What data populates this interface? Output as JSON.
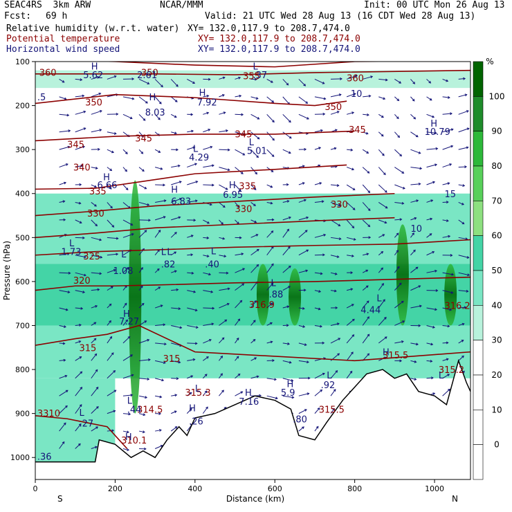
{
  "header": {
    "model": "SEAC4RS  3km ARW",
    "org": "NCAR/MMM",
    "init": "Init: 00 UTC Mon 26 Aug 13",
    "fcst_label": "Fcst:",
    "fcst_value": "69 h",
    "valid": "Valid: 21 UTC Wed 28 Aug 13 (16 CDT Wed 28 Aug 13)",
    "fields": [
      {
        "name": "Relative humidity (w.r.t. water)",
        "xy": "XY= 132.0,117.9 to 208.7,474.0",
        "color": "#000000"
      },
      {
        "name": "Potential temperature",
        "xy": "XY= 132.0,117.9 to 208.7,474.0",
        "color": "#8b0000"
      },
      {
        "name": "Horizontal wind speed",
        "xy": "XY= 132.0,117.9 to 208.7,474.0",
        "color": "#141478"
      }
    ]
  },
  "chart_data": {
    "type": "heatmap",
    "xlabel": "Distance (km)",
    "ylabel": "Pressure (hPa)",
    "x_ticks": [
      "0",
      "200",
      "400",
      "600",
      "800",
      "1000"
    ],
    "x_tick_values": [
      0,
      200,
      400,
      600,
      800,
      1000
    ],
    "xlim": [
      0,
      1090
    ],
    "y_ticks": [
      "100",
      "200",
      "300",
      "400",
      "500",
      "600",
      "700",
      "800",
      "900",
      "1000"
    ],
    "y_tick_values": [
      100,
      200,
      300,
      400,
      500,
      600,
      700,
      800,
      900,
      1000
    ],
    "ylim": [
      1050,
      100
    ],
    "x_end_labels": {
      "left": "S",
      "right": "N"
    },
    "colorbar": {
      "unit": "%",
      "ticks": [
        "100",
        "90",
        "80",
        "70",
        "60",
        "50",
        "40",
        "30",
        "20",
        "10",
        "0"
      ],
      "levels": [
        {
          "min": 100,
          "color": "#006400"
        },
        {
          "min": 90,
          "color": "#1e8c2a"
        },
        {
          "min": 80,
          "color": "#2db83a"
        },
        {
          "min": 70,
          "color": "#58d05a"
        },
        {
          "min": 60,
          "color": "#8de080"
        },
        {
          "min": 50,
          "color": "#44d4a6"
        },
        {
          "min": 40,
          "color": "#7ae6c4"
        },
        {
          "min": 30,
          "color": "#b8f2dc"
        },
        {
          "min": 20,
          "color": "#ffffff"
        },
        {
          "min": 10,
          "color": "#ffffff"
        },
        {
          "min": 0,
          "color": "#ffffff"
        }
      ]
    },
    "colors": {
      "theta": "#8b0000",
      "wind": "#141478",
      "terrain": "#000000"
    },
    "theta_contours": [
      {
        "value": "360",
        "points": [
          [
            0,
            95
          ],
          [
            200,
            100
          ],
          [
            400,
            108
          ],
          [
            600,
            112
          ],
          [
            800,
            100
          ],
          [
            1090,
            98
          ]
        ]
      },
      {
        "value": "355",
        "points": [
          [
            0,
            128
          ],
          [
            300,
            128
          ],
          [
            500,
            130
          ],
          [
            700,
            125
          ],
          [
            1090,
            120
          ]
        ]
      },
      {
        "value": "350",
        "points": [
          [
            0,
            195
          ],
          [
            200,
            175
          ],
          [
            400,
            182
          ],
          [
            600,
            195
          ],
          [
            700,
            200
          ],
          [
            780,
            190
          ]
        ]
      },
      {
        "value": "345",
        "points": [
          [
            0,
            280
          ],
          [
            200,
            270
          ],
          [
            400,
            265
          ],
          [
            600,
            265
          ],
          [
            800,
            258
          ]
        ]
      },
      {
        "value": "340",
        "points": [
          [
            0,
            390
          ],
          [
            150,
            388
          ],
          [
            250,
            375
          ],
          [
            400,
            355
          ],
          [
            600,
            345
          ],
          [
            780,
            335
          ]
        ]
      },
      {
        "value": "335",
        "points": [
          [
            0,
            450
          ],
          [
            150,
            440
          ],
          [
            300,
            428
          ],
          [
            500,
            418
          ],
          [
            700,
            408
          ],
          [
            900,
            400
          ]
        ]
      },
      {
        "value": "330",
        "points": [
          [
            0,
            500
          ],
          [
            150,
            490
          ],
          [
            300,
            478
          ],
          [
            500,
            470
          ],
          [
            700,
            462
          ],
          [
            900,
            455
          ]
        ]
      },
      {
        "value": "325",
        "points": [
          [
            0,
            540
          ],
          [
            150,
            532
          ],
          [
            300,
            528
          ],
          [
            500,
            522
          ],
          [
            700,
            518
          ],
          [
            900,
            515
          ],
          [
            1090,
            505
          ]
        ]
      },
      {
        "value": "320",
        "points": [
          [
            0,
            620
          ],
          [
            100,
            610
          ],
          [
            200,
            610
          ],
          [
            300,
            608
          ],
          [
            500,
            603
          ],
          [
            700,
            600
          ],
          [
            900,
            595
          ],
          [
            1090,
            590
          ]
        ]
      },
      {
        "value": "315",
        "points": [
          [
            0,
            745
          ],
          [
            100,
            730
          ],
          [
            180,
            720
          ],
          [
            260,
            700
          ],
          [
            400,
            760
          ],
          [
            600,
            770
          ],
          [
            800,
            780
          ],
          [
            1090,
            760
          ]
        ]
      },
      {
        "value": "310",
        "points": [
          [
            0,
            905
          ],
          [
            80,
            912
          ],
          [
            180,
            930
          ],
          [
            230,
            980
          ]
        ]
      }
    ],
    "theta_labels": [
      {
        "text": "360",
        "x": 10,
        "p": 132
      },
      {
        "text": "350",
        "x": 265,
        "p": 132
      },
      {
        "text": "355",
        "x": 520,
        "p": 140
      },
      {
        "text": "360",
        "x": 780,
        "p": 145
      },
      {
        "text": "350",
        "x": 125,
        "p": 200
      },
      {
        "text": "350",
        "x": 725,
        "p": 210
      },
      {
        "text": "345",
        "x": 80,
        "p": 296
      },
      {
        "text": "345",
        "x": 250,
        "p": 282
      },
      {
        "text": "345",
        "x": 500,
        "p": 272
      },
      {
        "text": "345",
        "x": 785,
        "p": 262
      },
      {
        "text": "340",
        "x": 95,
        "p": 348
      },
      {
        "text": "335",
        "x": 135,
        "p": 402
      },
      {
        "text": "335",
        "x": 510,
        "p": 390
      },
      {
        "text": "330",
        "x": 130,
        "p": 452
      },
      {
        "text": "330",
        "x": 500,
        "p": 442
      },
      {
        "text": "330",
        "x": 740,
        "p": 432
      },
      {
        "text": "325",
        "x": 120,
        "p": 550
      },
      {
        "text": "320",
        "x": 95,
        "p": 605
      },
      {
        "text": "315",
        "x": 110,
        "p": 758
      },
      {
        "text": "315",
        "x": 320,
        "p": 783
      },
      {
        "text": "3310",
        "x": 5,
        "p": 907
      },
      {
        "text": "315.3",
        "x": 375,
        "p": 860
      },
      {
        "text": "314.5",
        "x": 255,
        "p": 898
      },
      {
        "text": "310.1",
        "x": 215,
        "p": 968
      },
      {
        "text": "316.9",
        "x": 535,
        "p": 660
      },
      {
        "text": "315.5",
        "x": 710,
        "p": 898
      },
      {
        "text": "315.5",
        "x": 870,
        "p": 775
      },
      {
        "text": "315.2",
        "x": 1010,
        "p": 808
      },
      {
        "text": "316.2",
        "x": 1025,
        "p": 662
      }
    ],
    "wind_labels": [
      {
        "text": "H",
        "x": 140,
        "p": 118
      },
      {
        "text": "5.62",
        "x": 120,
        "p": 138
      },
      {
        "text": ".5",
        "x": 5,
        "p": 188
      },
      {
        "text": "2.61",
        "x": 255,
        "p": 138
      },
      {
        "text": ".37",
        "x": 545,
        "p": 138
      },
      {
        "text": "L",
        "x": 545,
        "p": 118
      },
      {
        "text": "10",
        "x": 790,
        "p": 180
      },
      {
        "text": "H",
        "x": 285,
        "p": 188
      },
      {
        "text": "8.03",
        "x": 275,
        "p": 223
      },
      {
        "text": "H",
        "x": 410,
        "p": 178
      },
      {
        "text": "7.92",
        "x": 405,
        "p": 200
      },
      {
        "text": "H",
        "x": 990,
        "p": 248
      },
      {
        "text": "10.79",
        "x": 975,
        "p": 267
      },
      {
        "text": "L",
        "x": 535,
        "p": 290
      },
      {
        "text": "5.01",
        "x": 530,
        "p": 310
      },
      {
        "text": "L",
        "x": 395,
        "p": 305
      },
      {
        "text": "4.29",
        "x": 385,
        "p": 325
      },
      {
        "text": "H",
        "x": 170,
        "p": 370
      },
      {
        "text": "6.66",
        "x": 155,
        "p": 388
      },
      {
        "text": "H",
        "x": 340,
        "p": 398
      },
      {
        "text": "6.83",
        "x": 340,
        "p": 425
      },
      {
        "text": "H",
        "x": 485,
        "p": 388
      },
      {
        "text": "6.95",
        "x": 470,
        "p": 410
      },
      {
        "text": "15",
        "x": 1025,
        "p": 408
      },
      {
        "text": "10",
        "x": 940,
        "p": 487
      },
      {
        "text": "L",
        "x": 85,
        "p": 520
      },
      {
        "text": "1.73",
        "x": 65,
        "p": 540
      },
      {
        "text": "L",
        "x": 215,
        "p": 545
      },
      {
        "text": "1.08",
        "x": 195,
        "p": 583
      },
      {
        "text": "L",
        "x": 330,
        "p": 540
      },
      {
        "text": "L",
        "x": 315,
        "p": 540
      },
      {
        "text": ".82",
        "x": 315,
        "p": 568
      },
      {
        "text": "L",
        "x": 440,
        "p": 538
      },
      {
        "text": ".40",
        "x": 425,
        "p": 568
      },
      {
        "text": "L",
        "x": 590,
        "p": 610
      },
      {
        "text": "L",
        "x": 855,
        "p": 645
      },
      {
        "text": ".88",
        "x": 585,
        "p": 636
      },
      {
        "text": "4.44",
        "x": 815,
        "p": 672
      },
      {
        "text": "H",
        "x": 220,
        "p": 680
      },
      {
        "text": "7.27",
        "x": 210,
        "p": 698
      },
      {
        "text": "H",
        "x": 870,
        "p": 768
      },
      {
        "text": "L",
        "x": 730,
        "p": 820
      },
      {
        "text": "L",
        "x": 1010,
        "p": 820
      },
      {
        "text": ".92",
        "x": 715,
        "p": 842
      },
      {
        "text": "H",
        "x": 630,
        "p": 840
      },
      {
        "text": "5.9",
        "x": 615,
        "p": 860
      },
      {
        "text": "H",
        "x": 525,
        "p": 860
      },
      {
        "text": "7.16",
        "x": 510,
        "p": 880
      },
      {
        "text": "L",
        "x": 400,
        "p": 850
      },
      {
        "text": "L",
        "x": 230,
        "p": 878
      },
      {
        "text": ".44",
        "x": 230,
        "p": 898
      },
      {
        "text": "H",
        "x": 385,
        "p": 895
      },
      {
        "text": ".26",
        "x": 385,
        "p": 925
      },
      {
        "text": "L",
        "x": 110,
        "p": 905
      },
      {
        "text": ".27",
        "x": 110,
        "p": 930
      },
      {
        "text": ".80",
        "x": 645,
        "p": 920
      },
      {
        "text": "H",
        "x": 225,
        "p": 960
      },
      {
        "text": ".36",
        "x": 5,
        "p": 1005
      }
    ],
    "humidity_cells": [
      {
        "x": [
          0,
          1090
        ],
        "p": [
          120,
          160
        ],
        "level": 30
      },
      {
        "x": [
          0,
          1090
        ],
        "p": [
          400,
          560
        ],
        "level": 40
      },
      {
        "x": [
          0,
          1090
        ],
        "p": [
          560,
          700
        ],
        "level": 50
      },
      {
        "x": [
          0,
          1090
        ],
        "p": [
          700,
          820
        ],
        "level": 40
      },
      {
        "x": [
          0,
          200
        ],
        "p": [
          820,
          1040
        ],
        "level": 40
      }
    ],
    "convective_towers": [
      {
        "x": 250,
        "p_top": 370,
        "p_bottom": 900
      },
      {
        "x": 570,
        "p_top": 560,
        "p_bottom": 700
      },
      {
        "x": 650,
        "p_top": 570,
        "p_bottom": 700
      },
      {
        "x": 920,
        "p_top": 470,
        "p_bottom": 700
      },
      {
        "x": 1040,
        "p_top": 560,
        "p_bottom": 700
      }
    ],
    "terrain": [
      [
        0,
        1010
      ],
      [
        150,
        1010
      ],
      [
        160,
        960
      ],
      [
        200,
        970
      ],
      [
        240,
        1000
      ],
      [
        270,
        985
      ],
      [
        300,
        1000
      ],
      [
        330,
        960
      ],
      [
        360,
        930
      ],
      [
        380,
        950
      ],
      [
        400,
        910
      ],
      [
        450,
        900
      ],
      [
        500,
        880
      ],
      [
        550,
        860
      ],
      [
        600,
        870
      ],
      [
        640,
        890
      ],
      [
        660,
        950
      ],
      [
        700,
        960
      ],
      [
        730,
        920
      ],
      [
        770,
        870
      ],
      [
        800,
        840
      ],
      [
        830,
        810
      ],
      [
        870,
        800
      ],
      [
        900,
        820
      ],
      [
        930,
        810
      ],
      [
        960,
        850
      ],
      [
        1000,
        860
      ],
      [
        1030,
        880
      ],
      [
        1060,
        780
      ],
      [
        1080,
        830
      ],
      [
        1090,
        850
      ]
    ]
  }
}
